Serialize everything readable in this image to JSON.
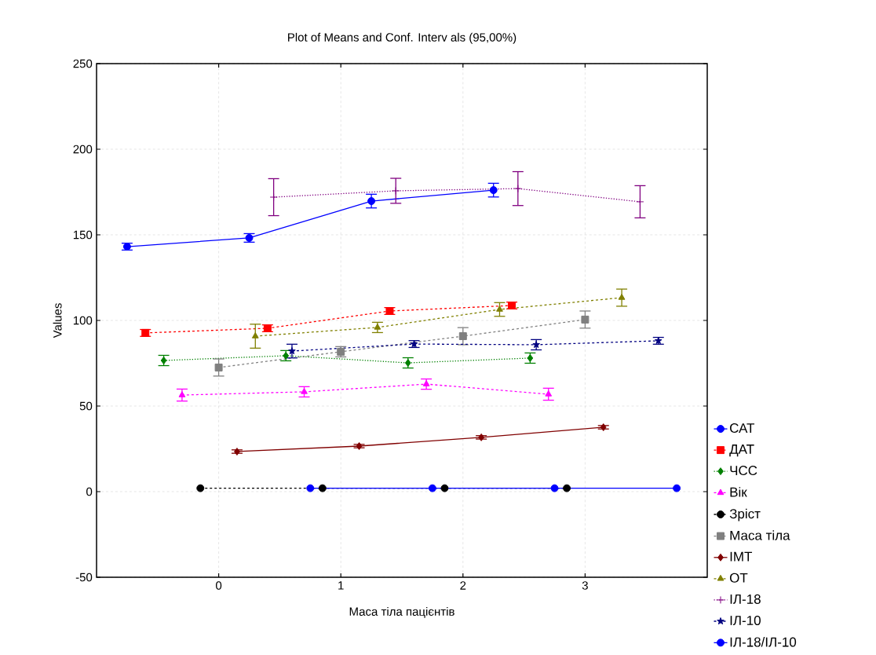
{
  "chart_data": {
    "type": "line",
    "title": "Plot of Means and Conf. Interv als (95,00%)",
    "xlabel": "Маса тіла пацієнтів",
    "ylabel": "Values",
    "xlim": [
      -1,
      4
    ],
    "xticks": [
      0,
      1,
      2,
      3
    ],
    "ylim": [
      -50,
      250
    ],
    "yticks": [
      -50,
      0,
      50,
      100,
      150,
      200,
      250
    ],
    "grid": true,
    "legend": "right",
    "series": [
      {
        "name": "САТ",
        "color": "#0000ff",
        "marker": "circle",
        "line_style": "solid",
        "x": [
          -0.75,
          0.25,
          1.25,
          2.25
        ],
        "values": [
          143.1,
          148.2,
          169.7,
          176.1
        ],
        "errors": [
          2,
          2.5,
          4,
          4
        ]
      },
      {
        "name": "ДАТ",
        "color": "#ff0000",
        "marker": "square",
        "line_style": "dashed",
        "x": [
          -0.6,
          0.4,
          1.4,
          2.4
        ],
        "values": [
          92.7,
          95.4,
          105.5,
          108.7
        ],
        "errors": [
          2,
          2,
          2,
          2
        ]
      },
      {
        "name": "ЧСС",
        "color": "#008000",
        "marker": "diamond",
        "line_style": "dotted",
        "x": [
          -0.45,
          0.55,
          1.55,
          2.55
        ],
        "values": [
          76.6,
          79.4,
          75.2,
          78
        ],
        "errors": [
          3,
          3,
          3,
          3
        ]
      },
      {
        "name": "Вік",
        "color": "#ff00ff",
        "marker": "triangle",
        "line_style": "dashed",
        "x": [
          -0.3,
          0.7,
          1.7,
          2.7
        ],
        "values": [
          56.4,
          58.3,
          62.8,
          56.9
        ],
        "errors": [
          3.5,
          3,
          3,
          3.5
        ]
      },
      {
        "name": "Зріст",
        "color": "#000000",
        "marker": "circle",
        "line_style": "dashed",
        "x": [
          -0.15,
          0.85,
          1.85,
          2.85
        ],
        "values": [
          2,
          2,
          2,
          2
        ]
      },
      {
        "name": "Маса тіла",
        "color": "#808080",
        "marker": "square",
        "line_style": "dashed",
        "x": [
          0,
          1,
          2,
          3
        ],
        "values": [
          72.5,
          81.7,
          90.8,
          100.5
        ],
        "errors": [
          5,
          3,
          5,
          5
        ]
      },
      {
        "name": "ІМТ",
        "color": "#800000",
        "marker": "diamond",
        "line_style": "solid",
        "x": [
          0.15,
          1.15,
          2.15,
          3.15
        ],
        "values": [
          23.4,
          26.6,
          31.7,
          37.6
        ],
        "errors": [
          1,
          1,
          1,
          1
        ]
      },
      {
        "name": "ОТ",
        "color": "#808000",
        "marker": "triangle",
        "line_style": "dashed",
        "x": [
          0.3,
          1.3,
          2.3,
          3.3
        ],
        "values": [
          90.8,
          95.9,
          106.4,
          113.3
        ],
        "errors": [
          7,
          3,
          4,
          5
        ]
      },
      {
        "name": "ІЛ-18",
        "color": "#800080",
        "marker": "cross",
        "line_style": "dotted",
        "x": [
          0.45,
          1.45,
          2.45,
          3.45
        ],
        "values": [
          172,
          175.7,
          177,
          169.3
        ],
        "errors": [
          10.8,
          7.3,
          9.9,
          9.4
        ]
      },
      {
        "name": "ІЛ-10",
        "color": "#000080",
        "marker": "star",
        "line_style": "dashed",
        "x": [
          0.6,
          1.6,
          2.6,
          3.6
        ],
        "values": [
          82.1,
          86.2,
          85.8,
          88.1
        ],
        "errors": [
          4,
          2,
          3,
          2
        ]
      },
      {
        "name": "ІЛ-18/ІЛ-10",
        "color": "#0000ff",
        "marker": "circle",
        "line_style": "solid",
        "x": [
          0.75,
          1.75,
          2.75,
          3.75
        ],
        "values": [
          2,
          2,
          2,
          2
        ]
      }
    ]
  }
}
